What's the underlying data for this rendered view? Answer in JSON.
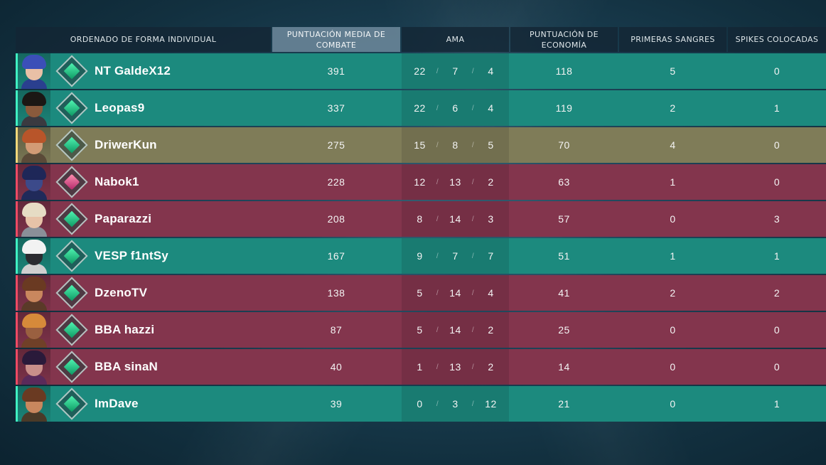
{
  "headers": {
    "sort": "ORDENADO DE FORMA INDIVIDUAL",
    "acs": "PUNTUACIÓN MEDIA DE COMBATE",
    "kda": "AMA",
    "eco": "PUNTUACIÓN DE ECONOMÍA",
    "fb": "PRIMERAS SANGRES",
    "plants": "SPIKES COLOCADAS"
  },
  "colors": {
    "ally": "#1c8a7e",
    "enemy": "#83354d",
    "self": "#7f7c58"
  },
  "players": [
    {
      "name": "NT GaldeX12",
      "team": "ally",
      "rank_icon": "emerald-rank-icon",
      "acs": "391",
      "k": "22",
      "d": "7",
      "a": "4",
      "eco": "118",
      "fb": "5",
      "plants": "0"
    },
    {
      "name": "Leopas9",
      "team": "ally",
      "rank_icon": "emerald-rank-icon",
      "acs": "337",
      "k": "22",
      "d": "6",
      "a": "4",
      "eco": "119",
      "fb": "2",
      "plants": "1"
    },
    {
      "name": "DriwerKun",
      "team": "self",
      "rank_icon": "emerald-rank-icon",
      "acs": "275",
      "k": "15",
      "d": "8",
      "a": "5",
      "eco": "70",
      "fb": "4",
      "plants": "0"
    },
    {
      "name": "Nabok1",
      "team": "enemy",
      "rank_icon": "crystal-rank-icon",
      "acs": "228",
      "k": "12",
      "d": "13",
      "a": "2",
      "eco": "63",
      "fb": "1",
      "plants": "0"
    },
    {
      "name": "Paparazzi",
      "team": "enemy",
      "rank_icon": "emerald-rank-icon",
      "acs": "208",
      "k": "8",
      "d": "14",
      "a": "3",
      "eco": "57",
      "fb": "0",
      "plants": "3"
    },
    {
      "name": "VESP f1ntSy",
      "team": "ally",
      "rank_icon": "emerald-rank-icon",
      "acs": "167",
      "k": "9",
      "d": "7",
      "a": "7",
      "eco": "51",
      "fb": "1",
      "plants": "1"
    },
    {
      "name": "DzenoTV",
      "team": "enemy",
      "rank_icon": "emerald-rank-icon",
      "acs": "138",
      "k": "5",
      "d": "14",
      "a": "4",
      "eco": "41",
      "fb": "2",
      "plants": "2"
    },
    {
      "name": "BBA hazzi",
      "team": "enemy",
      "rank_icon": "emerald-rank-icon",
      "acs": "87",
      "k": "5",
      "d": "14",
      "a": "2",
      "eco": "25",
      "fb": "0",
      "plants": "0"
    },
    {
      "name": "BBA sinaN",
      "team": "enemy",
      "rank_icon": "emerald-rank-icon",
      "acs": "40",
      "k": "1",
      "d": "13",
      "a": "2",
      "eco": "14",
      "fb": "0",
      "plants": "0"
    },
    {
      "name": "ImDave",
      "team": "ally",
      "rank_icon": "emerald-rank-icon",
      "acs": "39",
      "k": "0",
      "d": "3",
      "a": "12",
      "eco": "21",
      "fb": "0",
      "plants": "1"
    }
  ]
}
